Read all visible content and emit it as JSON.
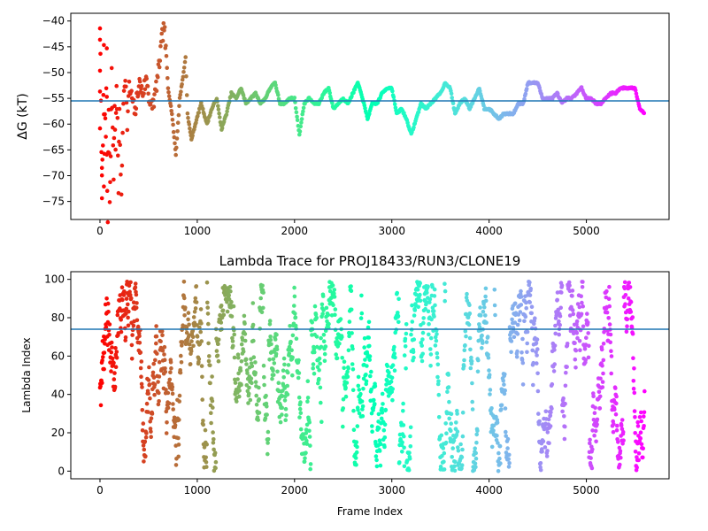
{
  "chart_data": [
    {
      "type": "scatter",
      "title": "",
      "xlabel": "",
      "ylabel": "ΔG (kT)",
      "xlim": [
        -300,
        5850
      ],
      "ylim": [
        -78.5,
        -38.5
      ],
      "xticks": [
        0,
        1000,
        2000,
        3000,
        4000,
        5000
      ],
      "xtick_labels": [
        "0",
        "1000",
        "2000",
        "3000",
        "4000",
        "5000"
      ],
      "yticks": [
        -40,
        -45,
        -50,
        -55,
        -60,
        -65,
        -70,
        -75
      ],
      "ytick_labels": [
        "−40",
        "−45",
        "−50",
        "−55",
        "−60",
        "−65",
        "−70",
        "−75"
      ],
      "hline": -55.5,
      "hline_color": "#1f77b4",
      "colormap": "rainbow (red at frame 0 → violet at last frame)",
      "x_max_frame": 5600,
      "series_points": [
        [
          0,
          -60
        ],
        [
          0,
          -50
        ],
        [
          0,
          -40
        ],
        [
          10,
          -55
        ],
        [
          20,
          -73
        ],
        [
          20,
          -70
        ],
        [
          30,
          -64
        ],
        [
          40,
          -45
        ],
        [
          40,
          -73
        ],
        [
          50,
          -58
        ],
        [
          60,
          -62
        ],
        [
          70,
          -44
        ],
        [
          70,
          -67
        ],
        [
          80,
          -78
        ],
        [
          90,
          -56
        ],
        [
          100,
          -75
        ],
        [
          110,
          -65
        ],
        [
          120,
          -50
        ],
        [
          130,
          -61
        ],
        [
          140,
          -70
        ],
        [
          150,
          -56
        ],
        [
          160,
          -65
        ],
        [
          170,
          -52
        ],
        [
          180,
          -60
        ],
        [
          190,
          -73
        ],
        [
          200,
          -57
        ],
        [
          220,
          -75
        ],
        [
          240,
          -55
        ],
        [
          260,
          -50
        ],
        [
          280,
          -60
        ],
        [
          300,
          -53
        ],
        [
          330,
          -55
        ],
        [
          360,
          -58
        ],
        [
          400,
          -52
        ],
        [
          440,
          -54
        ],
        [
          480,
          -51
        ],
        [
          520,
          -57
        ],
        [
          560,
          -55
        ],
        [
          600,
          -50
        ],
        [
          640,
          -43
        ],
        [
          660,
          -41
        ],
        [
          700,
          -53
        ],
        [
          740,
          -58
        ],
        [
          780,
          -66
        ],
        [
          820,
          -55
        ],
        [
          860,
          -50
        ],
        [
          880,
          -47
        ],
        [
          900,
          -58
        ],
        [
          940,
          -63
        ],
        [
          980,
          -60
        ],
        [
          1040,
          -56
        ],
        [
          1100,
          -60
        ],
        [
          1150,
          -57
        ],
        [
          1200,
          -55
        ],
        [
          1250,
          -61
        ],
        [
          1300,
          -58
        ],
        [
          1350,
          -54
        ],
        [
          1400,
          -55
        ],
        [
          1450,
          -53
        ],
        [
          1500,
          -56
        ],
        [
          1550,
          -55
        ],
        [
          1600,
          -54
        ],
        [
          1650,
          -56
        ],
        [
          1700,
          -55
        ],
        [
          1750,
          -53
        ],
        [
          1800,
          -52
        ],
        [
          1850,
          -56
        ],
        [
          1900,
          -56
        ],
        [
          1950,
          -55
        ],
        [
          2000,
          -55
        ],
        [
          2050,
          -62
        ],
        [
          2100,
          -56
        ],
        [
          2150,
          -55
        ],
        [
          2200,
          -56
        ],
        [
          2250,
          -56
        ],
        [
          2300,
          -54
        ],
        [
          2350,
          -53
        ],
        [
          2400,
          -57
        ],
        [
          2450,
          -56
        ],
        [
          2500,
          -55
        ],
        [
          2550,
          -56
        ],
        [
          2600,
          -54
        ],
        [
          2650,
          -52
        ],
        [
          2700,
          -55
        ],
        [
          2750,
          -59
        ],
        [
          2800,
          -56
        ],
        [
          2850,
          -56
        ],
        [
          2900,
          -54
        ],
        [
          2950,
          -53
        ],
        [
          3000,
          -53
        ],
        [
          3050,
          -58
        ],
        [
          3100,
          -57
        ],
        [
          3150,
          -59
        ],
        [
          3200,
          -62
        ],
        [
          3250,
          -59
        ],
        [
          3300,
          -56
        ],
        [
          3350,
          -57
        ],
        [
          3400,
          -56
        ],
        [
          3450,
          -55
        ],
        [
          3500,
          -54
        ],
        [
          3550,
          -52
        ],
        [
          3600,
          -53
        ],
        [
          3650,
          -58
        ],
        [
          3700,
          -56
        ],
        [
          3750,
          -55
        ],
        [
          3800,
          -57
        ],
        [
          3850,
          -55
        ],
        [
          3900,
          -53
        ],
        [
          3950,
          -57
        ],
        [
          4000,
          -57
        ],
        [
          4050,
          -58
        ],
        [
          4100,
          -59
        ],
        [
          4150,
          -58
        ],
        [
          4200,
          -58
        ],
        [
          4250,
          -58
        ],
        [
          4300,
          -56
        ],
        [
          4350,
          -56
        ],
        [
          4400,
          -52
        ],
        [
          4450,
          -52
        ],
        [
          4500,
          -52
        ],
        [
          4550,
          -55
        ],
        [
          4600,
          -55
        ],
        [
          4650,
          -55
        ],
        [
          4700,
          -54
        ],
        [
          4750,
          -56
        ],
        [
          4800,
          -55
        ],
        [
          4850,
          -55
        ],
        [
          4900,
          -54
        ],
        [
          4950,
          -53
        ],
        [
          5000,
          -55
        ],
        [
          5050,
          -55
        ],
        [
          5100,
          -56
        ],
        [
          5150,
          -56
        ],
        [
          5200,
          -55
        ],
        [
          5250,
          -54
        ],
        [
          5300,
          -54
        ],
        [
          5350,
          -53
        ],
        [
          5400,
          -53
        ],
        [
          5450,
          -53
        ],
        [
          5500,
          -53
        ],
        [
          5550,
          -57
        ],
        [
          5600,
          -58
        ]
      ]
    },
    {
      "type": "scatter",
      "title": "Lambda Trace for PROJ18433/RUN3/CLONE19",
      "xlabel": "Frame Index",
      "ylabel": "Lambda Index",
      "xlim": [
        -300,
        5850
      ],
      "ylim": [
        -4,
        104
      ],
      "xticks": [
        0,
        1000,
        2000,
        3000,
        4000,
        5000
      ],
      "xtick_labels": [
        "0",
        "1000",
        "2000",
        "3000",
        "4000",
        "5000"
      ],
      "yticks": [
        0,
        20,
        40,
        60,
        80,
        100
      ],
      "ytick_labels": [
        "0",
        "20",
        "40",
        "60",
        "80",
        "100"
      ],
      "hline": 74,
      "hline_color": "#1f77b4",
      "colormap": "rainbow (red at frame 0 → violet at last frame)",
      "value_range": [
        0,
        99
      ],
      "x_max_frame": 5600,
      "frames_drawn": 5600
    }
  ]
}
